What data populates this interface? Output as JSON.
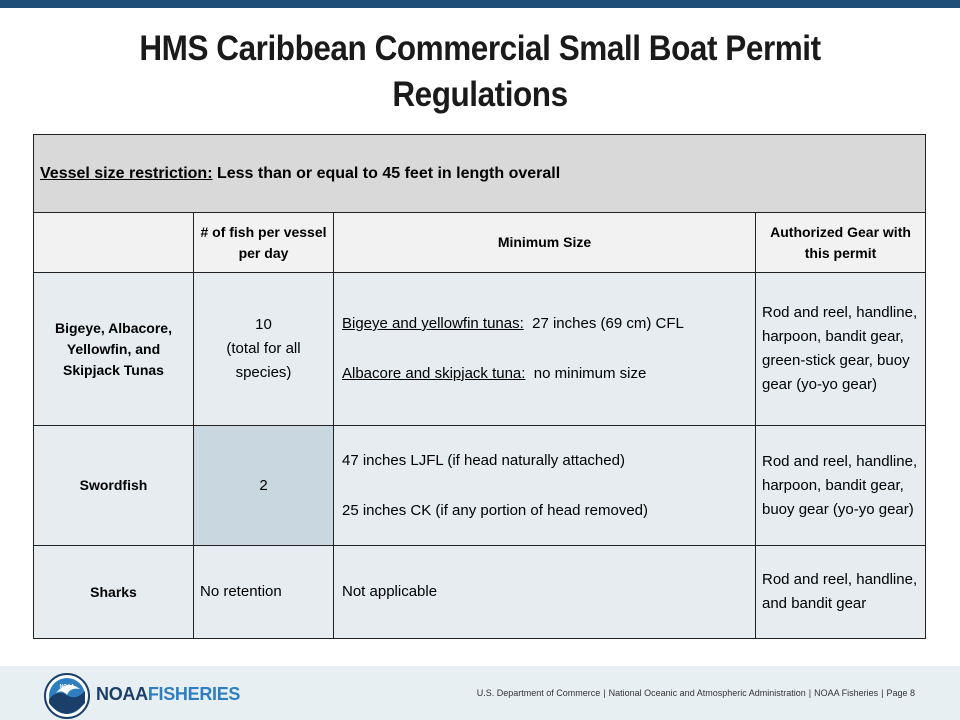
{
  "title": {
    "line1": "HMS Caribbean Commercial Small Boat Permit",
    "line2": "Regulations"
  },
  "banner": {
    "label": "Vessel size restriction:",
    "value": "Less than or equal to 45 feet in length overall"
  },
  "headers": {
    "count": "# of fish per vessel per day",
    "min_size": "Minimum Size",
    "gear": "Authorized Gear with this permit"
  },
  "rows": [
    {
      "species": "Bigeye, Albacore, Yellowfin, and Skipjack Tunas",
      "count_main": "10",
      "count_note": "(total for all species)",
      "min_size_1_label": "Bigeye and yellowfin tunas:",
      "min_size_1_value": "27 inches (69 cm) CFL",
      "min_size_2_label": "Albacore and skipjack tuna:",
      "min_size_2_value": "no minimum size",
      "gear": "Rod and reel, handline, harpoon, bandit gear, green-stick gear, buoy gear (yo-yo gear)"
    },
    {
      "species": "Swordfish",
      "count_main": "2",
      "min_size_1": "47 inches LJFL (if head naturally attached)",
      "min_size_2": "25 inches CK (if any portion of head removed)",
      "gear": "Rod and reel, handline, harpoon, bandit gear, buoy gear (yo-yo gear)"
    },
    {
      "species": "Sharks",
      "count_main": "No retention",
      "min_size_1": "Not applicable",
      "gear": "Rod and reel, handline, and bandit gear"
    }
  ],
  "footer": {
    "brand_part1": "NOAA",
    "brand_part2": "FISHERIES",
    "logo_text": "NOAA",
    "seg1": "U.S. Department of Commerce",
    "seg2": "National Oceanic and Atmospheric Administration",
    "seg3": "NOAA Fisheries",
    "seg4": "Page 8",
    "separator": "|"
  },
  "colors": {
    "top_bar": "#1f4e79",
    "banner_bg": "#d9d9d9",
    "cell_bg": "#e6ecf0",
    "shaded_cell": "#c9d7e0",
    "footer_bg": "#e8eff3"
  }
}
